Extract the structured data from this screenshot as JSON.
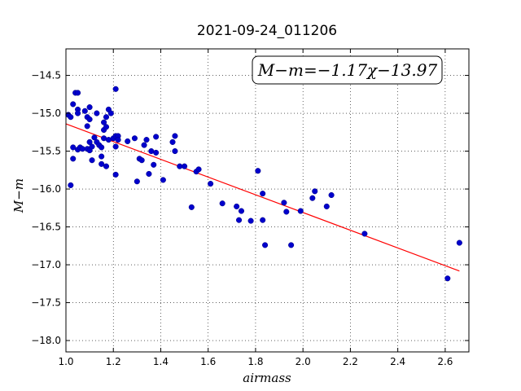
{
  "chart_data": {
    "type": "scatter",
    "title": "2021-09-24_011206",
    "xlabel": "airmass",
    "ylabel": "M−m",
    "annotation": "M−m=−1.17χ−13.97",
    "xlim": [
      1.0,
      2.7
    ],
    "ylim": [
      -18.15,
      -14.15
    ],
    "y_inverted": true,
    "grid": true,
    "x_ticks": [
      1.0,
      1.2,
      1.4,
      1.6,
      1.8,
      2.0,
      2.2,
      2.4,
      2.6
    ],
    "x_tick_labels": [
      "1.0",
      "1.2",
      "1.4",
      "1.6",
      "1.8",
      "2.0",
      "2.2",
      "2.4",
      "2.6"
    ],
    "y_ticks": [
      -14.5,
      -15.0,
      -15.5,
      -16.0,
      -16.5,
      -17.0,
      -17.5,
      -18.0
    ],
    "y_tick_labels": [
      "−14.5",
      "−15.0",
      "−15.5",
      "−16.0",
      "−16.5",
      "−17.0",
      "−17.5",
      "−18.0"
    ],
    "fit": {
      "slope": -1.17,
      "intercept": -13.97,
      "x_range": [
        1.0,
        2.66
      ],
      "color": "#ff0000"
    },
    "marker_color": "#0000cc",
    "points": [
      [
        1.01,
        -15.02
      ],
      [
        1.02,
        -15.95
      ],
      [
        1.02,
        -15.05
      ],
      [
        1.03,
        -14.88
      ],
      [
        1.03,
        -15.45
      ],
      [
        1.03,
        -15.6
      ],
      [
        1.04,
        -14.73
      ],
      [
        1.05,
        -14.73
      ],
      [
        1.05,
        -14.95
      ],
      [
        1.05,
        -15.0
      ],
      [
        1.05,
        -15.48
      ],
      [
        1.06,
        -15.45
      ],
      [
        1.07,
        -15.47
      ],
      [
        1.08,
        -14.97
      ],
      [
        1.09,
        -15.05
      ],
      [
        1.09,
        -15.17
      ],
      [
        1.09,
        -15.47
      ],
      [
        1.1,
        -14.92
      ],
      [
        1.1,
        -15.38
      ],
      [
        1.1,
        -15.49
      ],
      [
        1.1,
        -15.08
      ],
      [
        1.11,
        -15.44
      ],
      [
        1.11,
        -15.62
      ],
      [
        1.12,
        -15.32
      ],
      [
        1.13,
        -15.0
      ],
      [
        1.13,
        -15.38
      ],
      [
        1.14,
        -15.42
      ],
      [
        1.15,
        -15.45
      ],
      [
        1.15,
        -15.57
      ],
      [
        1.15,
        -15.67
      ],
      [
        1.16,
        -15.22
      ],
      [
        1.16,
        -15.33
      ],
      [
        1.16,
        -15.12
      ],
      [
        1.17,
        -15.05
      ],
      [
        1.17,
        -15.18
      ],
      [
        1.17,
        -15.7
      ],
      [
        1.18,
        -14.95
      ],
      [
        1.18,
        -15.35
      ],
      [
        1.19,
        -15.0
      ],
      [
        1.2,
        -15.33
      ],
      [
        1.21,
        -14.68
      ],
      [
        1.21,
        -15.44
      ],
      [
        1.21,
        -15.3
      ],
      [
        1.21,
        -15.81
      ],
      [
        1.22,
        -15.3
      ],
      [
        1.22,
        -15.35
      ],
      [
        1.26,
        -15.37
      ],
      [
        1.29,
        -15.33
      ],
      [
        1.3,
        -15.9
      ],
      [
        1.31,
        -15.6
      ],
      [
        1.32,
        -15.62
      ],
      [
        1.33,
        -15.42
      ],
      [
        1.34,
        -15.35
      ],
      [
        1.35,
        -15.8
      ],
      [
        1.36,
        -15.5
      ],
      [
        1.37,
        -15.68
      ],
      [
        1.38,
        -15.31
      ],
      [
        1.38,
        -15.52
      ],
      [
        1.41,
        -15.88
      ],
      [
        1.45,
        -15.38
      ],
      [
        1.46,
        -15.3
      ],
      [
        1.46,
        -15.5
      ],
      [
        1.48,
        -15.7
      ],
      [
        1.5,
        -15.7
      ],
      [
        1.53,
        -16.24
      ],
      [
        1.55,
        -15.77
      ],
      [
        1.56,
        -15.74
      ],
      [
        1.61,
        -15.93
      ],
      [
        1.66,
        -16.19
      ],
      [
        1.72,
        -16.23
      ],
      [
        1.73,
        -16.41
      ],
      [
        1.74,
        -16.29
      ],
      [
        1.78,
        -16.42
      ],
      [
        1.81,
        -15.76
      ],
      [
        1.83,
        -16.41
      ],
      [
        1.83,
        -16.06
      ],
      [
        1.84,
        -16.74
      ],
      [
        1.92,
        -16.18
      ],
      [
        1.93,
        -16.3
      ],
      [
        1.95,
        -16.74
      ],
      [
        1.99,
        -16.29
      ],
      [
        2.04,
        -16.12
      ],
      [
        2.05,
        -16.03
      ],
      [
        2.1,
        -16.23
      ],
      [
        2.12,
        -16.08
      ],
      [
        2.26,
        -16.59
      ],
      [
        2.61,
        -17.18
      ],
      [
        2.66,
        -16.71
      ]
    ]
  }
}
